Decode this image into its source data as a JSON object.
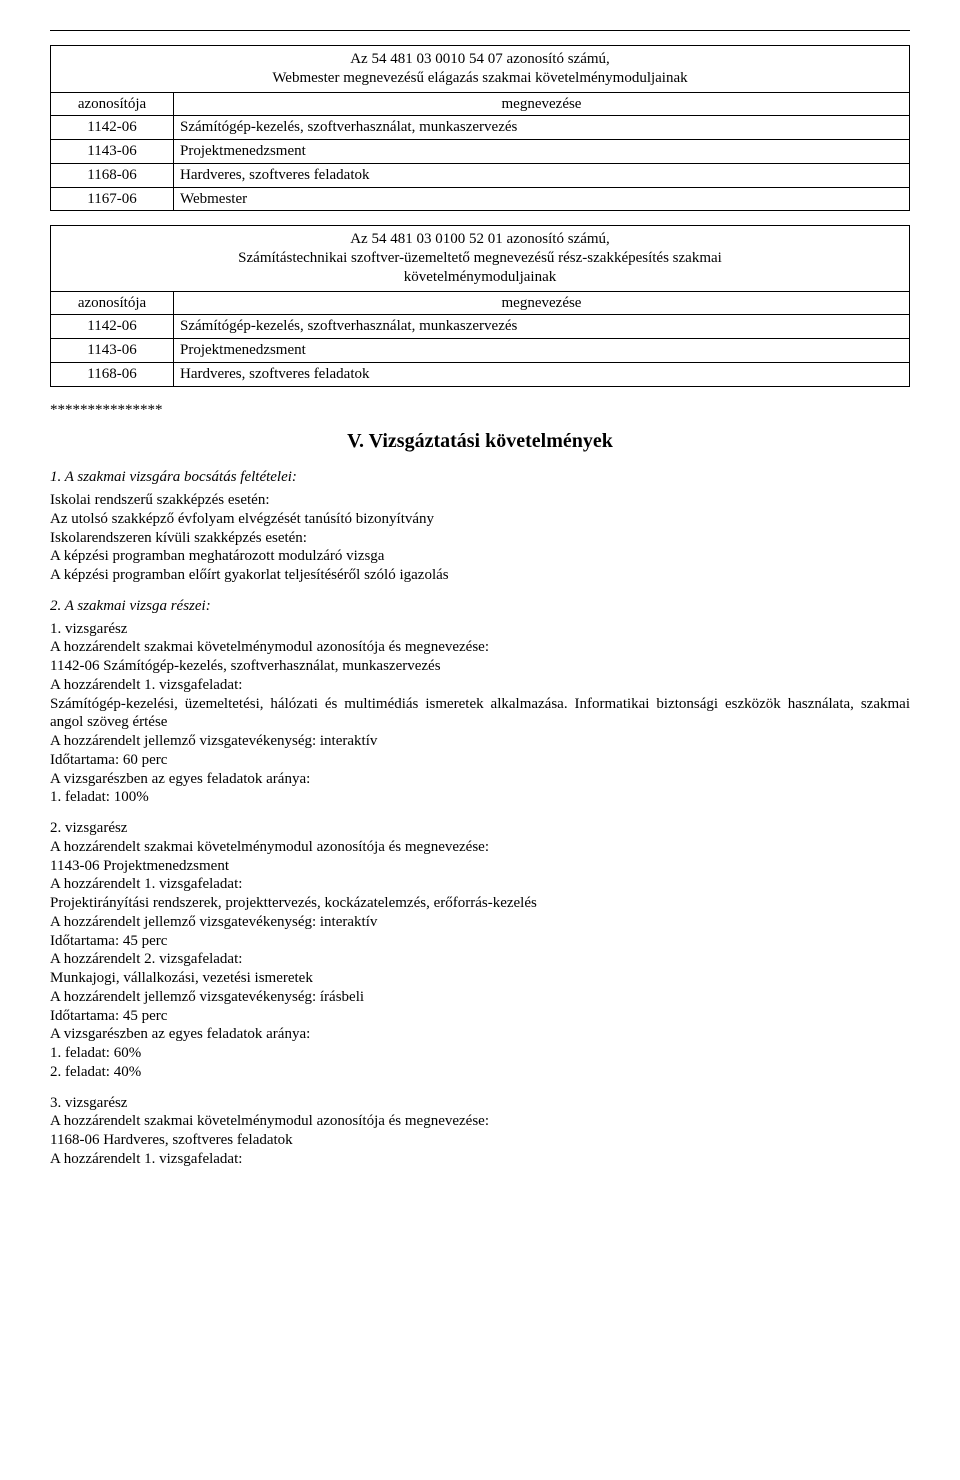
{
  "table1": {
    "title_line1": "Az 54 481 03 0010 54 07 azonosító számú,",
    "title_line2": "Webmester megnevezésű elágazás szakmai követelménymoduljainak",
    "col_id": "azonosítója",
    "col_name": "megnevezése",
    "rows": [
      {
        "id": "1142-06",
        "name": "Számítógép-kezelés, szoftverhasználat, munkaszervezés"
      },
      {
        "id": "1143-06",
        "name": "Projektmenedzsment"
      },
      {
        "id": "1168-06",
        "name": "Hardveres, szoftveres feladatok"
      },
      {
        "id": "1167-06",
        "name": "Webmester"
      }
    ]
  },
  "table2": {
    "title_line1": "Az 54 481 03 0100 52 01 azonosító számú,",
    "title_line2": "Számítástechnikai szoftver-üzemeltető megnevezésű rész-szakképesítés szakmai",
    "title_line3": "követelménymoduljainak",
    "col_id": "azonosítója",
    "col_name": "megnevezése",
    "rows": [
      {
        "id": "1142-06",
        "name": "Számítógép-kezelés, szoftverhasználat, munkaszervezés"
      },
      {
        "id": "1143-06",
        "name": "Projektmenedzsment"
      },
      {
        "id": "1168-06",
        "name": "Hardveres, szoftveres feladatok"
      }
    ]
  },
  "stars": "***************",
  "section_heading": "V. Vizsgáztatási követelmények",
  "s1": {
    "heading": "1. A szakmai vizsgára bocsátás feltételei:",
    "l1": "Iskolai rendszerű szakképzés esetén:",
    "l2": "Az utolsó szakképző évfolyam elvégzését tanúsító bizonyítvány",
    "l3": "Iskolarendszeren kívüli szakképzés esetén:",
    "l4": "A képzési programban meghatározott modulzáró vizsga",
    "l5": "A képzési programban előírt gyakorlat teljesítéséről szóló igazolás"
  },
  "s2": {
    "heading": "2. A szakmai vizsga részei:",
    "p1": {
      "l1": "1. vizsgarész",
      "l2": "A hozzárendelt szakmai követelménymodul azonosítója és megnevezése:",
      "l3": "1142-06 Számítógép-kezelés, szoftverhasználat, munkaszervezés",
      "l4": "A hozzárendelt 1. vizsgafeladat:",
      "l5": "Számítógép-kezelési, üzemeltetési, hálózati és multimédiás ismeretek alkalmazása. Informatikai biztonsági eszközök használata, szakmai angol szöveg értése",
      "l6": "A hozzárendelt jellemző vizsgatevékenység: interaktív",
      "l7": "Időtartama: 60 perc",
      "l8": "A vizsgarészben az egyes feladatok aránya:",
      "l9": "1. feladat: 100%"
    },
    "p2": {
      "l1": "2. vizsgarész",
      "l2": "A hozzárendelt szakmai követelménymodul azonosítója és megnevezése:",
      "l3": "1143-06 Projektmenedzsment",
      "l4": "A hozzárendelt 1. vizsgafeladat:",
      "l5": "Projektirányítási rendszerek, projekttervezés, kockázatelemzés, erőforrás-kezelés",
      "l6": "A hozzárendelt jellemző vizsgatevékenység: interaktív",
      "l7": "Időtartama: 45 perc",
      "l8": "A hozzárendelt 2. vizsgafeladat:",
      "l9": "Munkajogi, vállalkozási, vezetési ismeretek",
      "l10": "A hozzárendelt jellemző vizsgatevékenység: írásbeli",
      "l11": "Időtartama: 45 perc",
      "l12": "A vizsgarészben az egyes feladatok aránya:",
      "l13": "1. feladat: 60%",
      "l14": "2. feladat: 40%"
    },
    "p3": {
      "l1": "3. vizsgarész",
      "l2": "A hozzárendelt szakmai követelménymodul azonosítója és megnevezése:",
      "l3": "1168-06 Hardveres, szoftveres feladatok",
      "l4": "A hozzárendelt 1. vizsgafeladat:"
    }
  }
}
